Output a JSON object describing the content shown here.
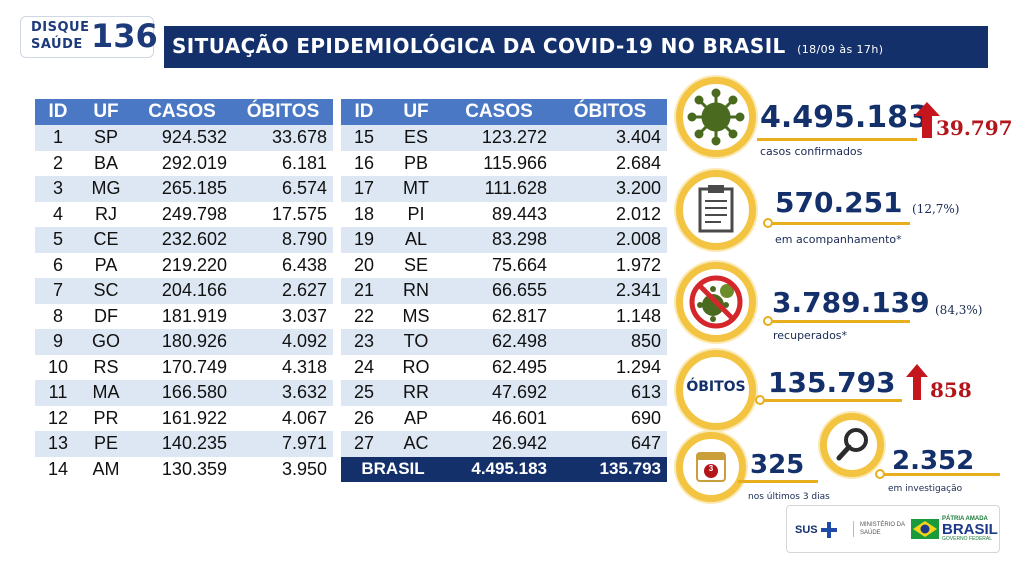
{
  "header": {
    "logo_line1": "DISQUE",
    "logo_line2": "SAÚDE",
    "logo_number": "136",
    "title": "SITUAÇÃO EPIDEMIOLÓGICA DA COVID-19 NO BRASIL",
    "date": "(18/09 às 17h)"
  },
  "table": {
    "headers": [
      "ID",
      "UF",
      "CASOS",
      "ÓBITOS"
    ],
    "left_rows": [
      [
        "1",
        "SP",
        "924.532",
        "33.678"
      ],
      [
        "2",
        "BA",
        "292.019",
        "6.181"
      ],
      [
        "3",
        "MG",
        "265.185",
        "6.574"
      ],
      [
        "4",
        "RJ",
        "249.798",
        "17.575"
      ],
      [
        "5",
        "CE",
        "232.602",
        "8.790"
      ],
      [
        "6",
        "PA",
        "219.220",
        "6.438"
      ],
      [
        "7",
        "SC",
        "204.166",
        "2.627"
      ],
      [
        "8",
        "DF",
        "181.919",
        "3.037"
      ],
      [
        "9",
        "GO",
        "180.926",
        "4.092"
      ],
      [
        "10",
        "RS",
        "170.749",
        "4.318"
      ],
      [
        "11",
        "MA",
        "166.580",
        "3.632"
      ],
      [
        "12",
        "PR",
        "161.922",
        "4.067"
      ],
      [
        "13",
        "PE",
        "140.235",
        "7.971"
      ],
      [
        "14",
        "AM",
        "130.359",
        "3.950"
      ]
    ],
    "right_rows": [
      [
        "15",
        "ES",
        "123.272",
        "3.404"
      ],
      [
        "16",
        "PB",
        "115.966",
        "2.684"
      ],
      [
        "17",
        "MT",
        "111.628",
        "3.200"
      ],
      [
        "18",
        "PI",
        "89.443",
        "2.012"
      ],
      [
        "19",
        "AL",
        "83.298",
        "2.008"
      ],
      [
        "20",
        "SE",
        "75.664",
        "1.972"
      ],
      [
        "21",
        "RN",
        "66.655",
        "2.341"
      ],
      [
        "22",
        "MS",
        "62.817",
        "1.148"
      ],
      [
        "23",
        "TO",
        "62.498",
        "850"
      ],
      [
        "24",
        "RO",
        "62.495",
        "1.294"
      ],
      [
        "25",
        "RR",
        "47.692",
        "613"
      ],
      [
        "26",
        "AP",
        "46.601",
        "690"
      ],
      [
        "27",
        "AC",
        "26.942",
        "647"
      ]
    ],
    "total": [
      "BRASIL",
      "4.495.183",
      "135.793"
    ]
  },
  "stats": {
    "confirmed": {
      "value": "4.495.183",
      "delta": "39.797",
      "label": "casos confirmados",
      "icon": "virus-icon"
    },
    "monitoring": {
      "value": "570.251",
      "pct": "(12,7%)",
      "label": "em acompanhamento*",
      "icon": "clipboard-icon"
    },
    "recovered": {
      "value": "3.789.139",
      "pct": "(84,3%)",
      "label": "recuperados*",
      "icon": "crossed-virus-icon"
    },
    "deaths": {
      "title": "ÓBITOS",
      "value": "135.793",
      "delta": "858"
    },
    "last3": {
      "value": "325",
      "label": "nos últimos 3 dias",
      "badge": "3",
      "icon": "calendar-icon"
    },
    "investigation": {
      "value": "2.352",
      "label": "em investigação",
      "icon": "magnifier-icon"
    }
  },
  "footer": {
    "sus": "SUS",
    "ministry_line1": "MINISTÉRIO DA",
    "ministry_line2": "SAÚDE",
    "brasil_line1": "PÁTRIA AMADA",
    "brasil_line2": "BRASIL",
    "brasil_line3": "GOVERNO FEDERAL"
  },
  "colors": {
    "navy": "#14306b",
    "table_header": "#4a78c4",
    "row_stripe": "#dde7f3",
    "ring": "#f3c342",
    "delta_red": "#b3151b",
    "virus_green": "#4a6a1f"
  }
}
